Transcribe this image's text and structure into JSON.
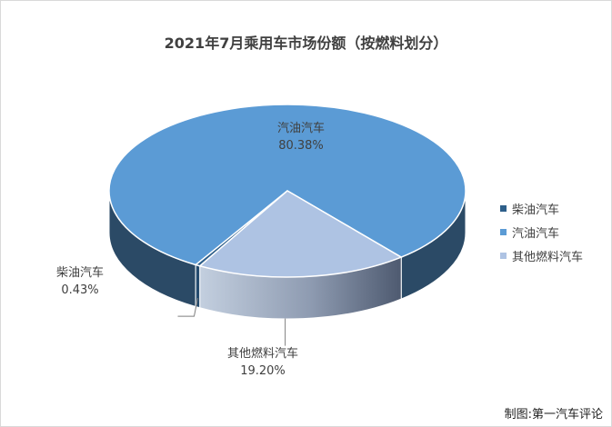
{
  "chart_data": {
    "type": "pie",
    "title": "2021年7月乘用车市场份额（按燃料划分）",
    "slices": [
      {
        "name": "柴油汽车",
        "value": 0.43,
        "label": "0.43%",
        "color": "#2e5f8a"
      },
      {
        "name": "汽油汽车",
        "value": 80.38,
        "label": "80.38%",
        "color": "#5b9bd5"
      },
      {
        "name": "其他燃料汽车",
        "value": 19.2,
        "label": "19.20%",
        "color": "#aec3e3"
      }
    ],
    "legend_position": "right"
  },
  "credit": "制图:第一汽车评论"
}
